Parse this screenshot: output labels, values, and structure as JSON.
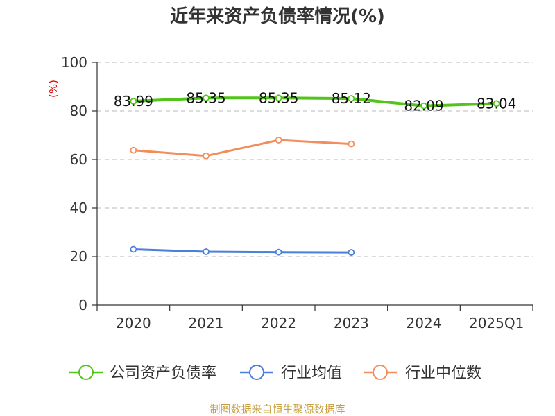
{
  "chart_data": {
    "type": "line",
    "title": "近年来资产负债率情况(%)",
    "ylabel": "(%)",
    "categories": [
      "2020",
      "2021",
      "2022",
      "2023",
      "2024",
      "2025Q1"
    ],
    "ylim": [
      0,
      100
    ],
    "yticks": [
      "0",
      "20",
      "40",
      "60",
      "80",
      "100"
    ],
    "grid": true,
    "legend_position": "bottom",
    "series": [
      {
        "name": "公司资产负债率",
        "color": "#52c41a",
        "values": [
          83.99,
          85.35,
          85.35,
          85.12,
          82.09,
          83.04
        ],
        "labels": [
          "83.99",
          "85.35",
          "85.35",
          "85.12",
          "82.09",
          "83.04"
        ]
      },
      {
        "name": "行业均值",
        "color": "#4a7fdb",
        "values": [
          23.0,
          22.0,
          21.8,
          21.7,
          null,
          null
        ]
      },
      {
        "name": "行业中位数",
        "color": "#f28e5c",
        "values": [
          63.8,
          61.5,
          68.0,
          66.4,
          null,
          null
        ]
      }
    ],
    "source": "制图数据来自恒生聚源数据库"
  }
}
